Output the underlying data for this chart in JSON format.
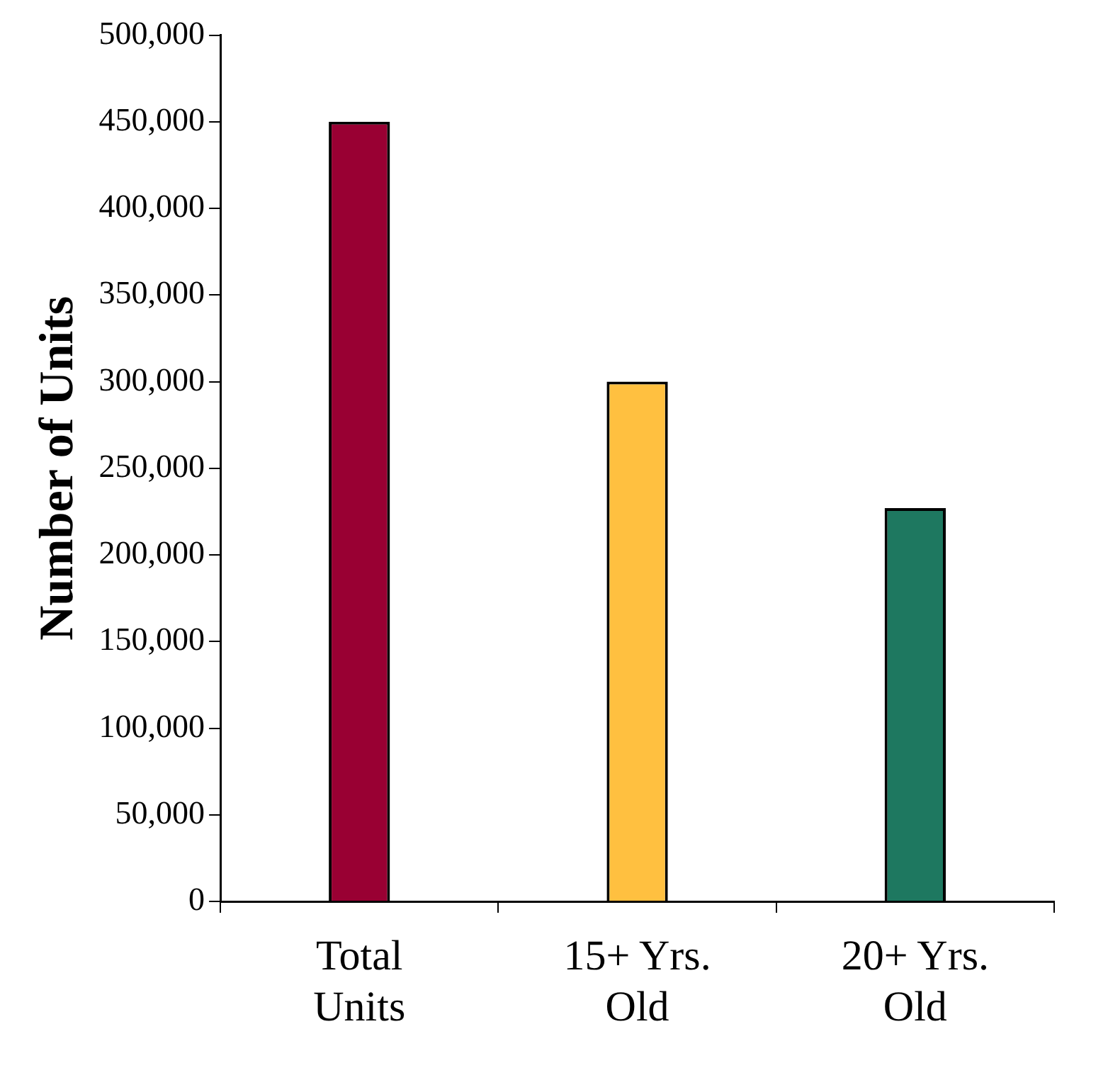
{
  "chart_data": {
    "type": "bar",
    "ylabel": "Number of Units",
    "categories": [
      "Total Units",
      "15+ Yrs. Old",
      "20+ Yrs. Old"
    ],
    "values": [
      450000,
      300000,
      227000
    ],
    "colors": [
      "#990033",
      "#ffc040",
      "#1e7860"
    ],
    "ylim": [
      0,
      500000
    ],
    "yticks": [
      0,
      {
        "value": 50000,
        "label": "50,000"
      },
      {
        "value": 100000,
        "label": "100,000"
      },
      {
        "value": 150000,
        "label": "150,000"
      },
      {
        "value": 200000,
        "label": "200,000"
      },
      {
        "value": 250000,
        "label": "250,000"
      },
      {
        "value": 300000,
        "label": "300,000"
      },
      {
        "value": 350000,
        "label": "350,000"
      },
      {
        "value": 400000,
        "label": "400,000"
      },
      {
        "value": 450000,
        "label": "450,000"
      },
      {
        "value": 500000,
        "label": "500,000"
      }
    ],
    "grid": false,
    "legend": false
  }
}
